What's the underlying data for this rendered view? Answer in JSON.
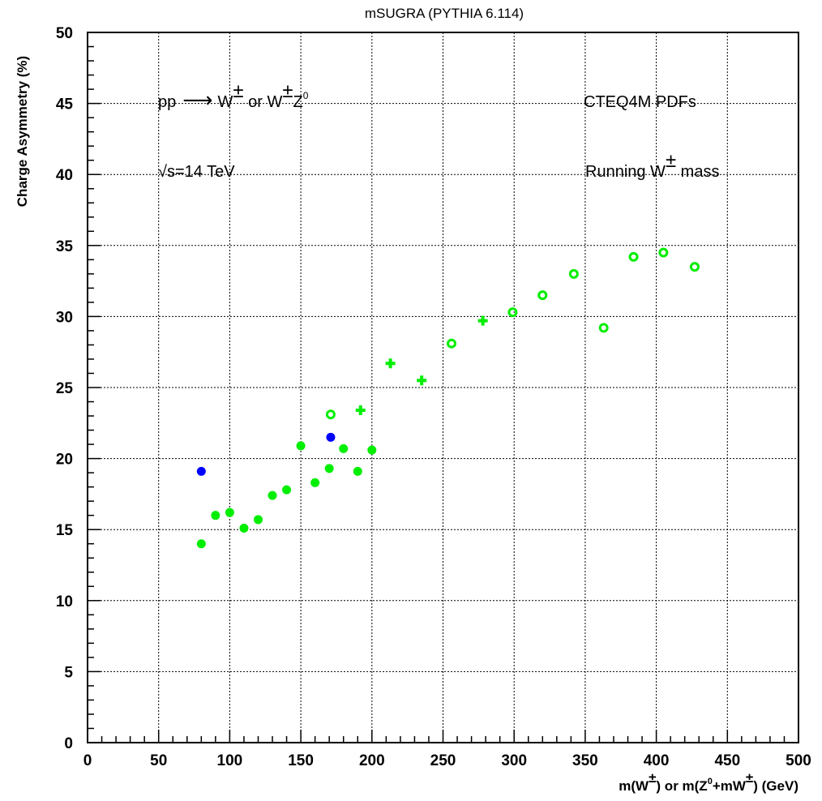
{
  "chart_data": {
    "type": "scatter",
    "title": "mSUGRA (PYTHIA 6.114)",
    "ylabel": "Charge Asymmetry (%)",
    "xlabel": {
      "prefix": "m(W",
      "pm1": "±",
      "mid": ") or m(Z",
      "zero": "0",
      "mid2": "+mW",
      "pm2": "±",
      "suffix": ") (GeV)"
    },
    "xlim": [
      0,
      500
    ],
    "ylim": [
      0,
      50
    ],
    "xticks": [
      0,
      50,
      100,
      150,
      200,
      250,
      300,
      350,
      400,
      450,
      500
    ],
    "yticks": [
      0,
      5,
      10,
      15,
      20,
      25,
      30,
      35,
      40,
      45,
      50
    ],
    "grid": true,
    "annotations": {
      "process": {
        "text1": "pp",
        "arrow": "⟶",
        "w": "W",
        "pm": "±",
        "or": " or W",
        "pm2": "±",
        "z": "Z",
        "zero": "0"
      },
      "energy": "√s=14 TeV",
      "pdf": "CTEQ4M PDFs",
      "mass": {
        "text": "Running W",
        "pm": "±",
        "suffix": " mass"
      }
    },
    "series": [
      {
        "marker": "filled-circle",
        "color": "#0000ff",
        "points": [
          [
            80,
            19.1
          ],
          [
            171,
            21.5
          ]
        ]
      },
      {
        "marker": "filled-circle",
        "color": "#00ee00",
        "points": [
          [
            80,
            14.0
          ],
          [
            90,
            16.0
          ],
          [
            100,
            16.2
          ],
          [
            110,
            15.1
          ],
          [
            120,
            15.7
          ],
          [
            130,
            17.4
          ],
          [
            140,
            17.8
          ],
          [
            150,
            20.9
          ],
          [
            160,
            18.3
          ],
          [
            170,
            19.3
          ],
          [
            180,
            20.7
          ],
          [
            190,
            19.1
          ],
          [
            200,
            20.6
          ]
        ]
      },
      {
        "marker": "open-circle",
        "color": "#00ee00",
        "points": [
          [
            171,
            23.1
          ],
          [
            256,
            28.1
          ],
          [
            299,
            30.3
          ],
          [
            320,
            31.5
          ],
          [
            342,
            33.0
          ],
          [
            363,
            29.2
          ],
          [
            384,
            34.2
          ],
          [
            405,
            34.5
          ],
          [
            427,
            33.5
          ]
        ]
      },
      {
        "marker": "cross",
        "color": "#00ee00",
        "points": [
          [
            192,
            23.4
          ],
          [
            213,
            26.7
          ],
          [
            235,
            25.5
          ],
          [
            278,
            29.7
          ]
        ]
      }
    ]
  }
}
